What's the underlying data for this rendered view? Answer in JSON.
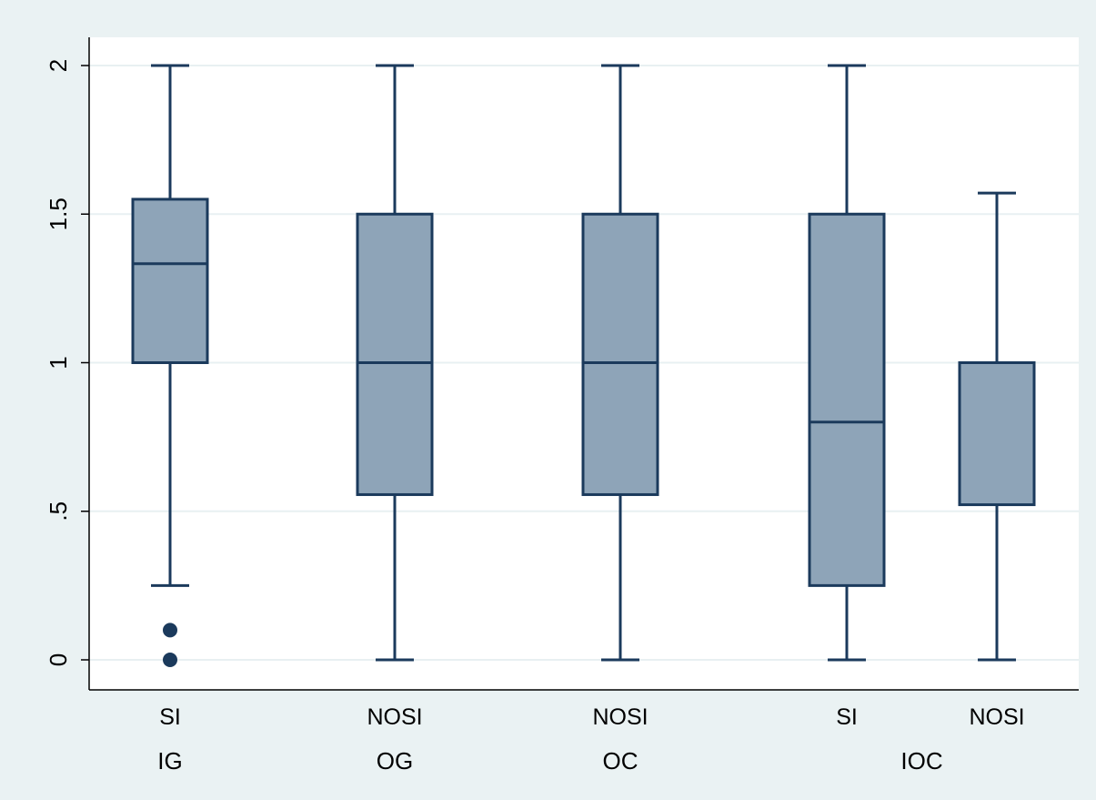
{
  "chart_data": {
    "type": "box",
    "title": "",
    "xlabel": "",
    "ylabel": "",
    "ylim": [
      0,
      2
    ],
    "y_ticks": [
      0,
      0.5,
      1,
      1.5,
      2
    ],
    "y_tick_labels": [
      "0",
      ".5",
      "1",
      "1.5",
      "2"
    ],
    "grid": true,
    "legend": "none",
    "boxes": [
      {
        "category": "SI",
        "group": "IG",
        "min": 0.25,
        "q1": 1.0,
        "median": 1.333,
        "q3": 1.55,
        "max": 2.0,
        "outliers": [
          0.1,
          0.0
        ]
      },
      {
        "category": "NOSI",
        "group": "OG",
        "min": 0.0,
        "q1": 0.556,
        "median": 1.0,
        "q3": 1.5,
        "max": 2.0,
        "outliers": []
      },
      {
        "category": "NOSI",
        "group": "OC",
        "min": 0.0,
        "q1": 0.556,
        "median": 1.0,
        "q3": 1.5,
        "max": 2.0,
        "outliers": []
      },
      {
        "category": "SI",
        "group": "IOC",
        "min": 0.0,
        "q1": 0.25,
        "median": 0.8,
        "q3": 1.5,
        "max": 2.0,
        "outliers": []
      },
      {
        "category": "NOSI",
        "group": "IOC",
        "min": 0.0,
        "q1": 0.522,
        "median": 1.0,
        "q3": 1.0,
        "max": 1.571,
        "outliers": []
      }
    ],
    "group_labels": [
      "IG",
      "OG",
      "OC",
      "IOC"
    ],
    "colors": {
      "background": "#eaf2f3",
      "plot_area": "#ffffff",
      "grid": "#e8f0f2",
      "box_fill": "#8ea4b8",
      "box_stroke": "#1b3a5c",
      "outlier": "#1b3a5c",
      "axis": "#000000"
    }
  }
}
